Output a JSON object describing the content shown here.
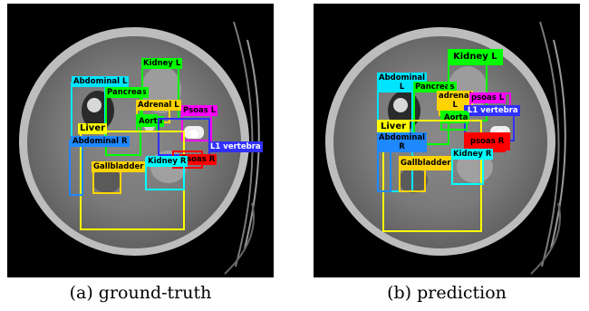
{
  "captions": {
    "ground_truth": "(a) ground-truth",
    "prediction": "(b) prediction"
  },
  "colors": {
    "abdominal": "#00e5ff",
    "abdominal_r": "#1e88ff",
    "pancreas": "#00ff00",
    "kidney": "#00ff00",
    "adrenal": "#ffd400",
    "psoas_l": "#ff00ff",
    "psoas_r": "#ff0000",
    "l1": "#3030ff",
    "liver": "#ffff00",
    "gallbladder": "#ffd400",
    "kidney_r": "#00ffff"
  },
  "ground_truth": {
    "abdominal_l": "Abdominal L",
    "pancreas": "Pancreas",
    "kidney_l": "Kidney L",
    "adrenal_l": "Adrenal L",
    "psoas_l": "Psoas  L",
    "aorta": "Aorta",
    "liver": "Liver",
    "abdominal_r": "Abdominal R",
    "l1_vertebra": "L1 vertebra",
    "psoas_r": "Psoas R",
    "gallbladder": "Gallbladder",
    "kidney_r": "Kidney R"
  },
  "prediction": {
    "abdominal": "Abdominal\nL",
    "pancreas": "Pancreas",
    "kidney_l": "Kidney L",
    "adrenal_l": "adrenal\nL",
    "psoas_l": "psoas  L",
    "l1_vertebra": "L1 vertebra",
    "aorta": "Aorta",
    "liver": "Liver",
    "abdominal_r": "Abdominal\nR",
    "psoas_r": "psoas R",
    "gallbladder": "Gallbladder",
    "kidney_r": "Kidney R"
  }
}
